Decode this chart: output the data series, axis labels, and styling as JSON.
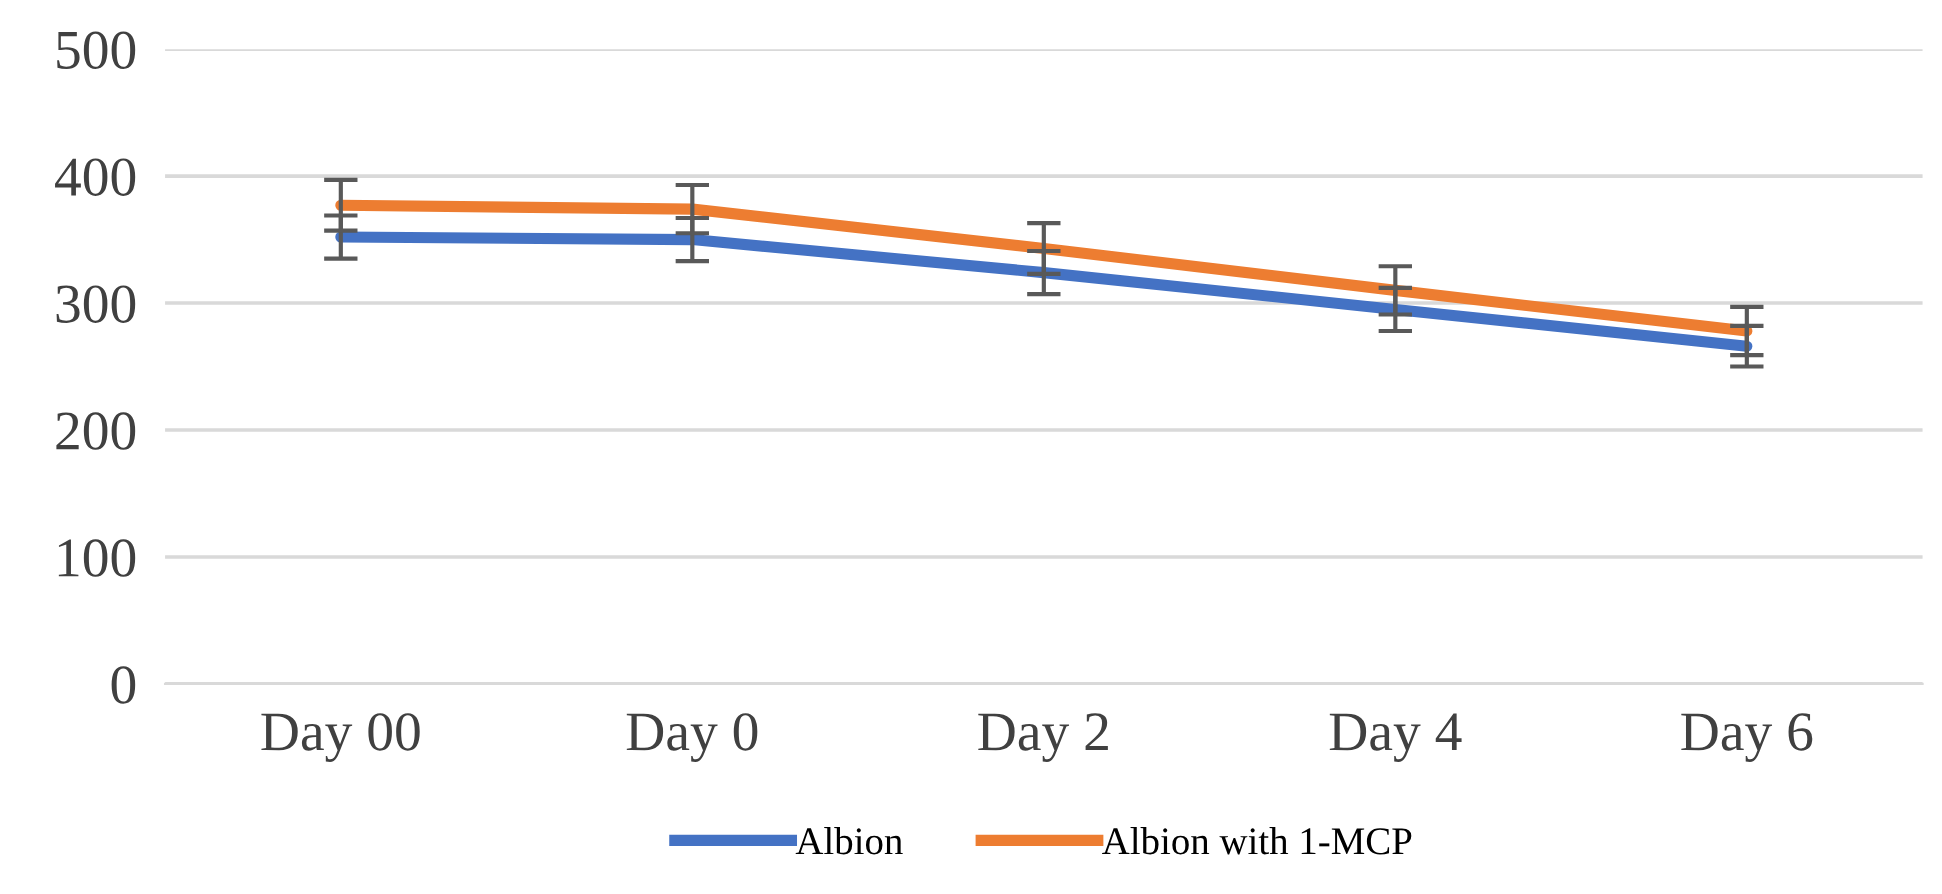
{
  "chart_data": {
    "type": "line",
    "categories": [
      "Day 00",
      "Day 0",
      "Day 2",
      "Day 4",
      "Day 6"
    ],
    "series": [
      {
        "name": "Albion",
        "color": "#4472c4",
        "values": [
          352,
          350,
          324,
          295,
          266
        ],
        "errors": [
          17,
          17,
          17,
          17,
          16
        ]
      },
      {
        "name": "Albion with 1-MCP",
        "color": "#ed7d31",
        "values": [
          377,
          374,
          343,
          310,
          278
        ],
        "errors": [
          20,
          19,
          20,
          19,
          19
        ]
      }
    ],
    "ylim": [
      0,
      500
    ],
    "yticks": [
      0,
      100,
      200,
      300,
      400,
      500
    ],
    "grid": "y",
    "legend": "bottom",
    "marker": "none",
    "line_style": "solid"
  }
}
